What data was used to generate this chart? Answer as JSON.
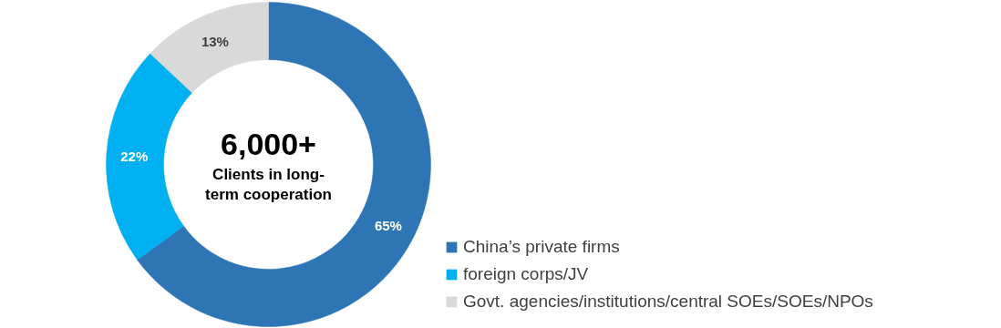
{
  "chart_data": {
    "type": "donut",
    "categories": [
      "China’s private firms",
      "foreign corps/JV",
      "Govt. agencies/institutions/central SOEs/SOEs/NPOs"
    ],
    "values": [
      65,
      22,
      13
    ],
    "colors": [
      "#2e75b6",
      "#00b0f0",
      "#d9d9d9"
    ],
    "value_labels": [
      "65%",
      "22%",
      "13%"
    ],
    "annotations": [
      "6,000+",
      "Clients in long-\nterm cooperation"
    ],
    "legend": "right"
  }
}
